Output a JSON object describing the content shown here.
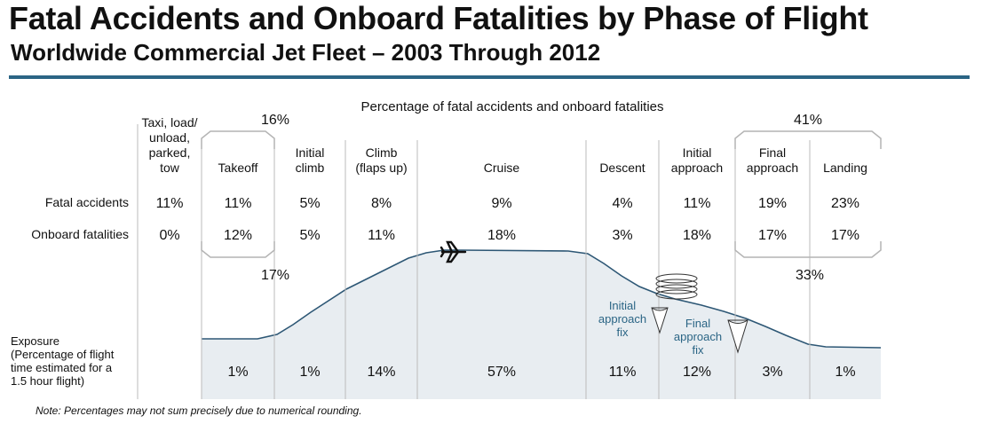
{
  "header": {
    "title": "Fatal Accidents and Onboard Fatalities by Phase of Flight",
    "subtitle": "Worldwide Commercial Jet Fleet – 2003 Through 2012"
  },
  "note": "Note:  Percentages may not sum precisely due to numerical rounding.",
  "colors": {
    "rule": "#2b6585",
    "profile_fill": "#e8edf1",
    "profile_line": "#2d5775",
    "brackets": "#b4b4b4",
    "grid": "#bbbbbb",
    "annotation_text": "#2b6585"
  },
  "chart_data": {
    "type": "table",
    "title": "Percentage of fatal accidents and onboard fatalities",
    "phases": [
      [
        "Taxi, load/",
        "unload,",
        "parked,",
        "tow"
      ],
      [
        "Takeoff"
      ],
      [
        "Initial",
        "climb"
      ],
      [
        "Climb",
        "(flaps up)"
      ],
      [
        "Cruise"
      ],
      [
        "Descent"
      ],
      [
        "Initial",
        "approach"
      ],
      [
        "Final",
        "approach"
      ],
      [
        "Landing"
      ]
    ],
    "rows": [
      {
        "label": "Fatal accidents",
        "values": [
          11,
          11,
          5,
          8,
          9,
          4,
          11,
          19,
          23
        ],
        "display": [
          "11%",
          "11%",
          "5%",
          "8%",
          "9%",
          "4%",
          "11%",
          "19%",
          "23%"
        ]
      },
      {
        "label": "Onboard fatalities",
        "values": [
          0,
          12,
          5,
          11,
          18,
          3,
          18,
          17,
          17
        ],
        "display": [
          "0%",
          "12%",
          "5%",
          "11%",
          "18%",
          "3%",
          "18%",
          "17%",
          "17%"
        ]
      }
    ],
    "exposure": {
      "label": [
        "Exposure",
        "(Percentage of flight",
        "time estimated for a",
        "1.5 hour flight)"
      ],
      "values": [
        null,
        1,
        1,
        14,
        57,
        11,
        12,
        3,
        1
      ],
      "display": [
        "",
        "1%",
        "1%",
        "14%",
        "57%",
        "11%",
        "12%",
        "3%",
        "1%"
      ]
    },
    "groups": [
      {
        "row": "Fatal accidents",
        "phases": [
          "Takeoff",
          "Initial climb"
        ],
        "value": 16,
        "display": "16%"
      },
      {
        "row": "Fatal accidents",
        "phases": [
          "Final approach",
          "Landing"
        ],
        "value": 41,
        "display": "41%"
      },
      {
        "row": "Onboard fatalities",
        "phases": [
          "Takeoff",
          "Initial climb"
        ],
        "value": 17,
        "display": "17%"
      },
      {
        "row": "Onboard fatalities",
        "phases": [
          "Final approach",
          "Landing"
        ],
        "value": 33,
        "display": "33%"
      }
    ],
    "annotations": [
      [
        "Initial",
        "approach",
        "fix"
      ],
      [
        "Final",
        "approach",
        "fix"
      ]
    ]
  }
}
